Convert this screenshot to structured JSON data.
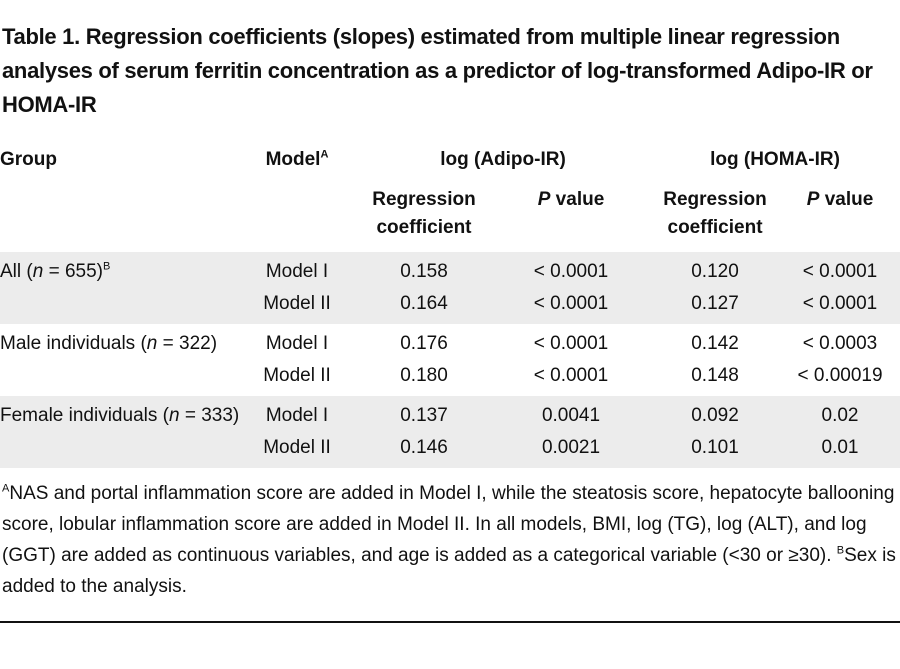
{
  "title": "Table 1. Regression coefficients (slopes) estimated from multiple linear regression analyses of serum ferritin concentration as a predictor of log-transformed Adipo-IR or HOMA-IR",
  "headers": {
    "group": "Group",
    "model": "Model",
    "model_sup": "A",
    "adipo": "log (Adipo-IR)",
    "homa": "log (HOMA-IR)",
    "reg_coef_line1": "Regression",
    "reg_coef_line2": "coefficient",
    "p_italic": "P",
    "p_rest": " value"
  },
  "groups": [
    {
      "label_pre": "All (",
      "label_n": "n",
      "label_post": " = 655)",
      "label_sup": "B",
      "rows": [
        {
          "model": "Model I",
          "adipo_coef": "0.158",
          "adipo_p": "< 0.0001",
          "homa_coef": "0.120",
          "homa_p": "< 0.0001"
        },
        {
          "model": "Model II",
          "adipo_coef": "0.164",
          "adipo_p": "< 0.0001",
          "homa_coef": "0.127",
          "homa_p": "< 0.0001"
        }
      ]
    },
    {
      "label_pre": "Male individuals (",
      "label_n": "n",
      "label_post": " = 322)",
      "label_sup": "",
      "rows": [
        {
          "model": "Model I",
          "adipo_coef": "0.176",
          "adipo_p": "< 0.0001",
          "homa_coef": "0.142",
          "homa_p": "< 0.0003"
        },
        {
          "model": "Model II",
          "adipo_coef": "0.180",
          "adipo_p": "< 0.0001",
          "homa_coef": "0.148",
          "homa_p": "< 0.00019"
        }
      ]
    },
    {
      "label_pre": "Female individuals (",
      "label_n": "n",
      "label_post": " = 333)",
      "label_sup": "",
      "rows": [
        {
          "model": "Model I",
          "adipo_coef": "0.137",
          "adipo_p": "0.0041",
          "homa_coef": "0.092",
          "homa_p": "0.02"
        },
        {
          "model": "Model II",
          "adipo_coef": "0.146",
          "adipo_p": "0.0021",
          "homa_coef": "0.101",
          "homa_p": "0.01"
        }
      ]
    }
  ],
  "footnote": {
    "a_sup": "A",
    "a_text": "NAS and portal inflammation score are added in Model I, while the steatosis score, hepatocyte ballooning score, lobular inflammation score are added in Model II. In all models, BMI, log (TG), log (ALT), and log (GGT) are added as continuous variables, and age is added as a categorical variable (<30 or ≥30). ",
    "b_sup": "B",
    "b_text": "Sex is added to the analysis."
  },
  "colors": {
    "row_shade": "#ececec",
    "text": "#111111"
  }
}
